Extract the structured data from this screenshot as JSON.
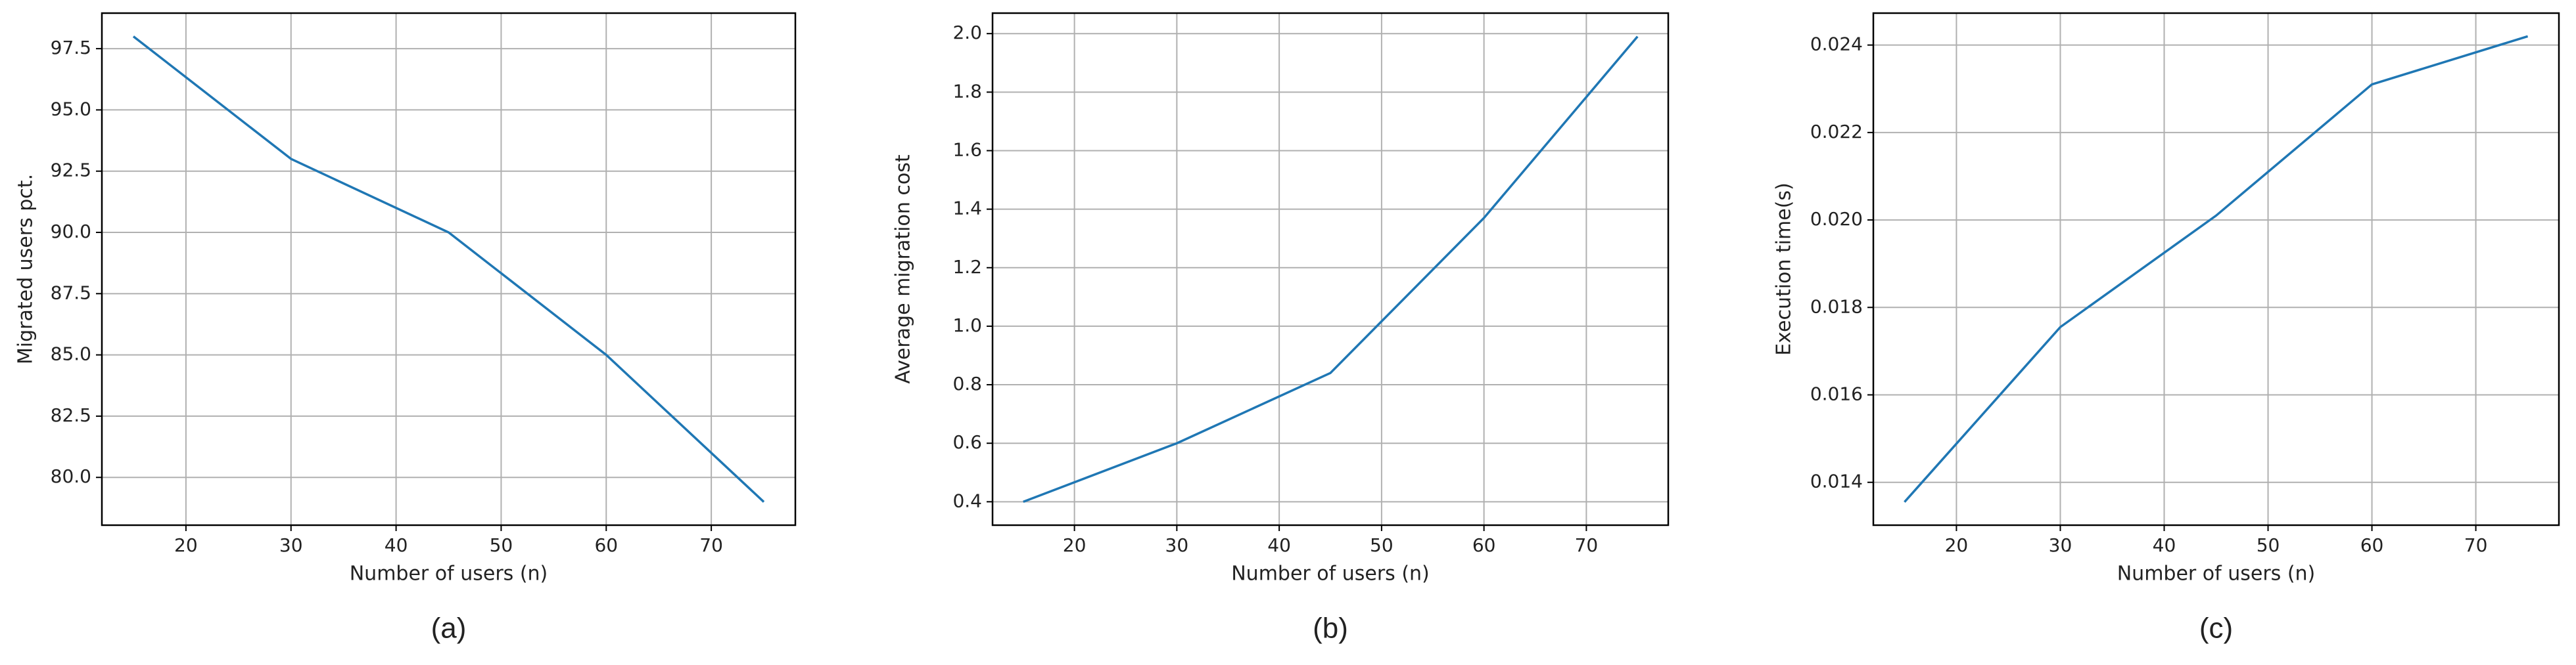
{
  "chart_data": [
    {
      "type": "line",
      "caption": "(a)",
      "xlabel": "Number of users (n)",
      "ylabel": "Migrated users pct.",
      "x": [
        15,
        30,
        45,
        60,
        75
      ],
      "series": [
        {
          "color": "#1f77b4",
          "values": [
            98,
            93,
            90,
            85,
            79
          ]
        }
      ],
      "xlim": [
        12,
        78
      ],
      "xticks": [
        20,
        30,
        40,
        50,
        60,
        70
      ],
      "ylim": [
        78.05,
        98.95
      ],
      "yticks": [
        {
          "value": 80,
          "label": "80.0"
        },
        82.5,
        {
          "value": 85,
          "label": "85.0"
        },
        87.5,
        {
          "value": 90,
          "label": "90.0"
        },
        92.5,
        {
          "value": 95,
          "label": "95.0"
        },
        97.5
      ],
      "grid": true
    },
    {
      "type": "line",
      "caption": "(b)",
      "xlabel": "Number of users (n)",
      "ylabel": "Average migration cost",
      "x": [
        15,
        30,
        45,
        60,
        75
      ],
      "series": [
        {
          "color": "#1f77b4",
          "values": [
            0.4,
            0.6,
            0.84,
            1.37,
            1.99
          ]
        }
      ],
      "xlim": [
        12,
        78
      ],
      "xticks": [
        20,
        30,
        40,
        50,
        60,
        70
      ],
      "ylim": [
        0.32,
        2.07
      ],
      "yticks": [
        0.4,
        0.6,
        0.8,
        {
          "value": 1,
          "label": "1.0"
        },
        1.2,
        1.4,
        1.6,
        1.8,
        {
          "value": 2,
          "label": "2.0"
        }
      ],
      "grid": true
    },
    {
      "type": "line",
      "caption": "(c)",
      "xlabel": "Number of users (n)",
      "ylabel": "Execution time(s)",
      "x": [
        15,
        30,
        45,
        60,
        75
      ],
      "series": [
        {
          "color": "#1f77b4",
          "values": [
            0.01355,
            0.01755,
            0.0201,
            0.0231,
            0.0242
          ]
        }
      ],
      "xlim": [
        12,
        78
      ],
      "xticks": [
        20,
        30,
        40,
        50,
        60,
        70
      ],
      "ylim": [
        0.01302,
        0.02473
      ],
      "yticks": [
        0.014,
        0.016,
        0.018,
        {
          "value": 0.02,
          "label": "0.020"
        },
        0.022,
        0.024
      ],
      "grid": true
    }
  ]
}
